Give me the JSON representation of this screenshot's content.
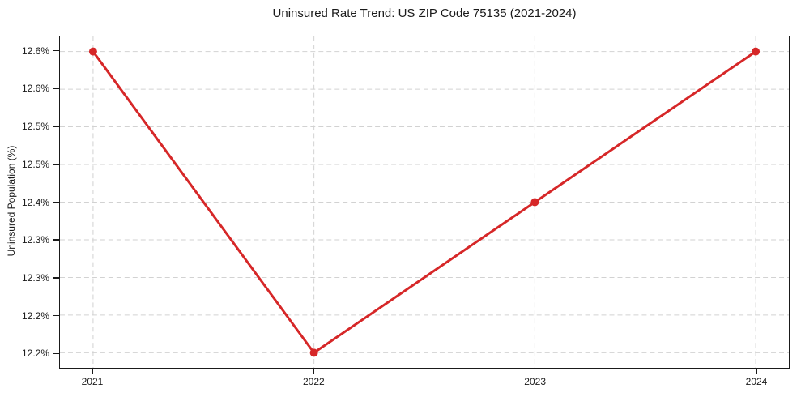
{
  "figure": {
    "background": "#ffffff"
  },
  "chart_data": {
    "type": "line",
    "title": "Uninsured Rate Trend: US ZIP Code 75135 (2021-2024)",
    "xlabel": "",
    "ylabel": "Uninsured Population (%)",
    "x": [
      2021,
      2022,
      2023,
      2024
    ],
    "x_tick_labels": [
      "2021",
      "2022",
      "2023",
      "2024"
    ],
    "series": [
      {
        "name": "Uninsured rate",
        "values": [
          12.6,
          12.2,
          12.4,
          12.6
        ]
      }
    ],
    "xlim": [
      2020.85,
      2024.15
    ],
    "ylim": [
      12.18,
      12.62
    ],
    "y_ticks": [
      12.2,
      12.25,
      12.3,
      12.35,
      12.4,
      12.45,
      12.5,
      12.55,
      12.6
    ],
    "y_tick_labels": [
      "12.2%",
      "12.2%",
      "12.3%",
      "12.3%",
      "12.4%",
      "12.5%",
      "12.5%",
      "12.6%",
      "12.6%"
    ],
    "grid": true,
    "grid_style": "dashed",
    "legend": false,
    "line_color": "#d62728",
    "line_width": 3,
    "marker": "circle",
    "marker_radius": 5,
    "marker_color": "#d62728",
    "grid_color": "#d2d2d2",
    "axis_color": "#1a1a1a",
    "text_color": "#1a1a1a"
  }
}
